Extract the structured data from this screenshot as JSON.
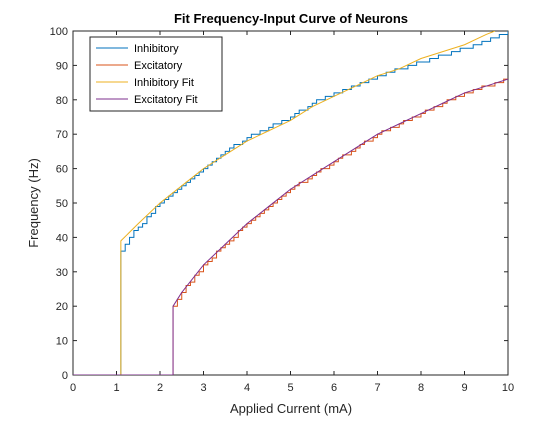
{
  "chart_data": {
    "type": "line",
    "title": "Fit Frequency-Input Curve of Neurons",
    "xlabel": "Applied Current (mA)",
    "ylabel": "Frequency (Hz)",
    "xlim": [
      0,
      10
    ],
    "ylim": [
      0,
      100
    ],
    "xticks": [
      0,
      1,
      2,
      3,
      4,
      5,
      6,
      7,
      8,
      9,
      10
    ],
    "yticks": [
      0,
      10,
      20,
      30,
      40,
      50,
      60,
      70,
      80,
      90,
      100
    ],
    "grid": false,
    "legend_position": "top-left",
    "series": [
      {
        "name": "Inhibitory",
        "color": "#0072BD",
        "style": "step",
        "x": [
          0,
          1.1,
          1.1,
          1.2,
          1.3,
          1.5,
          2.0,
          2.5,
          3.0,
          3.5,
          4.0,
          4.5,
          5.0,
          5.5,
          6.0,
          6.5,
          7.0,
          7.5,
          8.0,
          8.5,
          9.0,
          9.5,
          10.0
        ],
        "y": [
          0,
          0,
          36,
          38,
          40,
          43,
          50,
          55,
          60,
          65,
          69,
          72,
          75,
          79,
          82,
          84,
          87,
          89,
          91,
          93,
          95,
          97,
          100
        ]
      },
      {
        "name": "Excitatory",
        "color": "#D95319",
        "style": "step",
        "x": [
          0,
          2.3,
          2.3,
          2.5,
          3.0,
          3.5,
          4.0,
          4.5,
          5.0,
          5.5,
          6.0,
          6.5,
          7.0,
          7.5,
          8.0,
          8.5,
          9.0,
          9.5,
          10.0
        ],
        "y": [
          0,
          0,
          20,
          24,
          32,
          38,
          44,
          49,
          54,
          58,
          62,
          66,
          70,
          73,
          76,
          79,
          82,
          84,
          86
        ]
      },
      {
        "name": "Inhibitory Fit",
        "color": "#EDB120",
        "style": "line",
        "x": [
          0,
          1.1,
          1.1,
          1.5,
          2.0,
          2.5,
          3.0,
          3.5,
          4.0,
          4.5,
          5.0,
          5.5,
          6.0,
          6.5,
          7.0,
          7.5,
          8.0,
          8.5,
          9.0,
          9.5,
          9.7
        ],
        "y": [
          0,
          0,
          39,
          44,
          50,
          55,
          60,
          64,
          68,
          71,
          74,
          78,
          81,
          84,
          87,
          89,
          92,
          94,
          96,
          99,
          100
        ]
      },
      {
        "name": "Excitatory Fit",
        "color": "#7E2F8E",
        "style": "line",
        "x": [
          0,
          2.3,
          2.3,
          2.5,
          3.0,
          3.5,
          4.0,
          4.5,
          5.0,
          5.5,
          6.0,
          6.5,
          7.0,
          7.5,
          8.0,
          8.5,
          9.0,
          9.5,
          10.0
        ],
        "y": [
          0,
          0,
          20,
          24,
          32,
          38,
          44,
          49,
          54,
          58,
          62,
          66,
          70,
          73,
          76,
          79,
          82,
          84,
          86
        ]
      }
    ]
  }
}
